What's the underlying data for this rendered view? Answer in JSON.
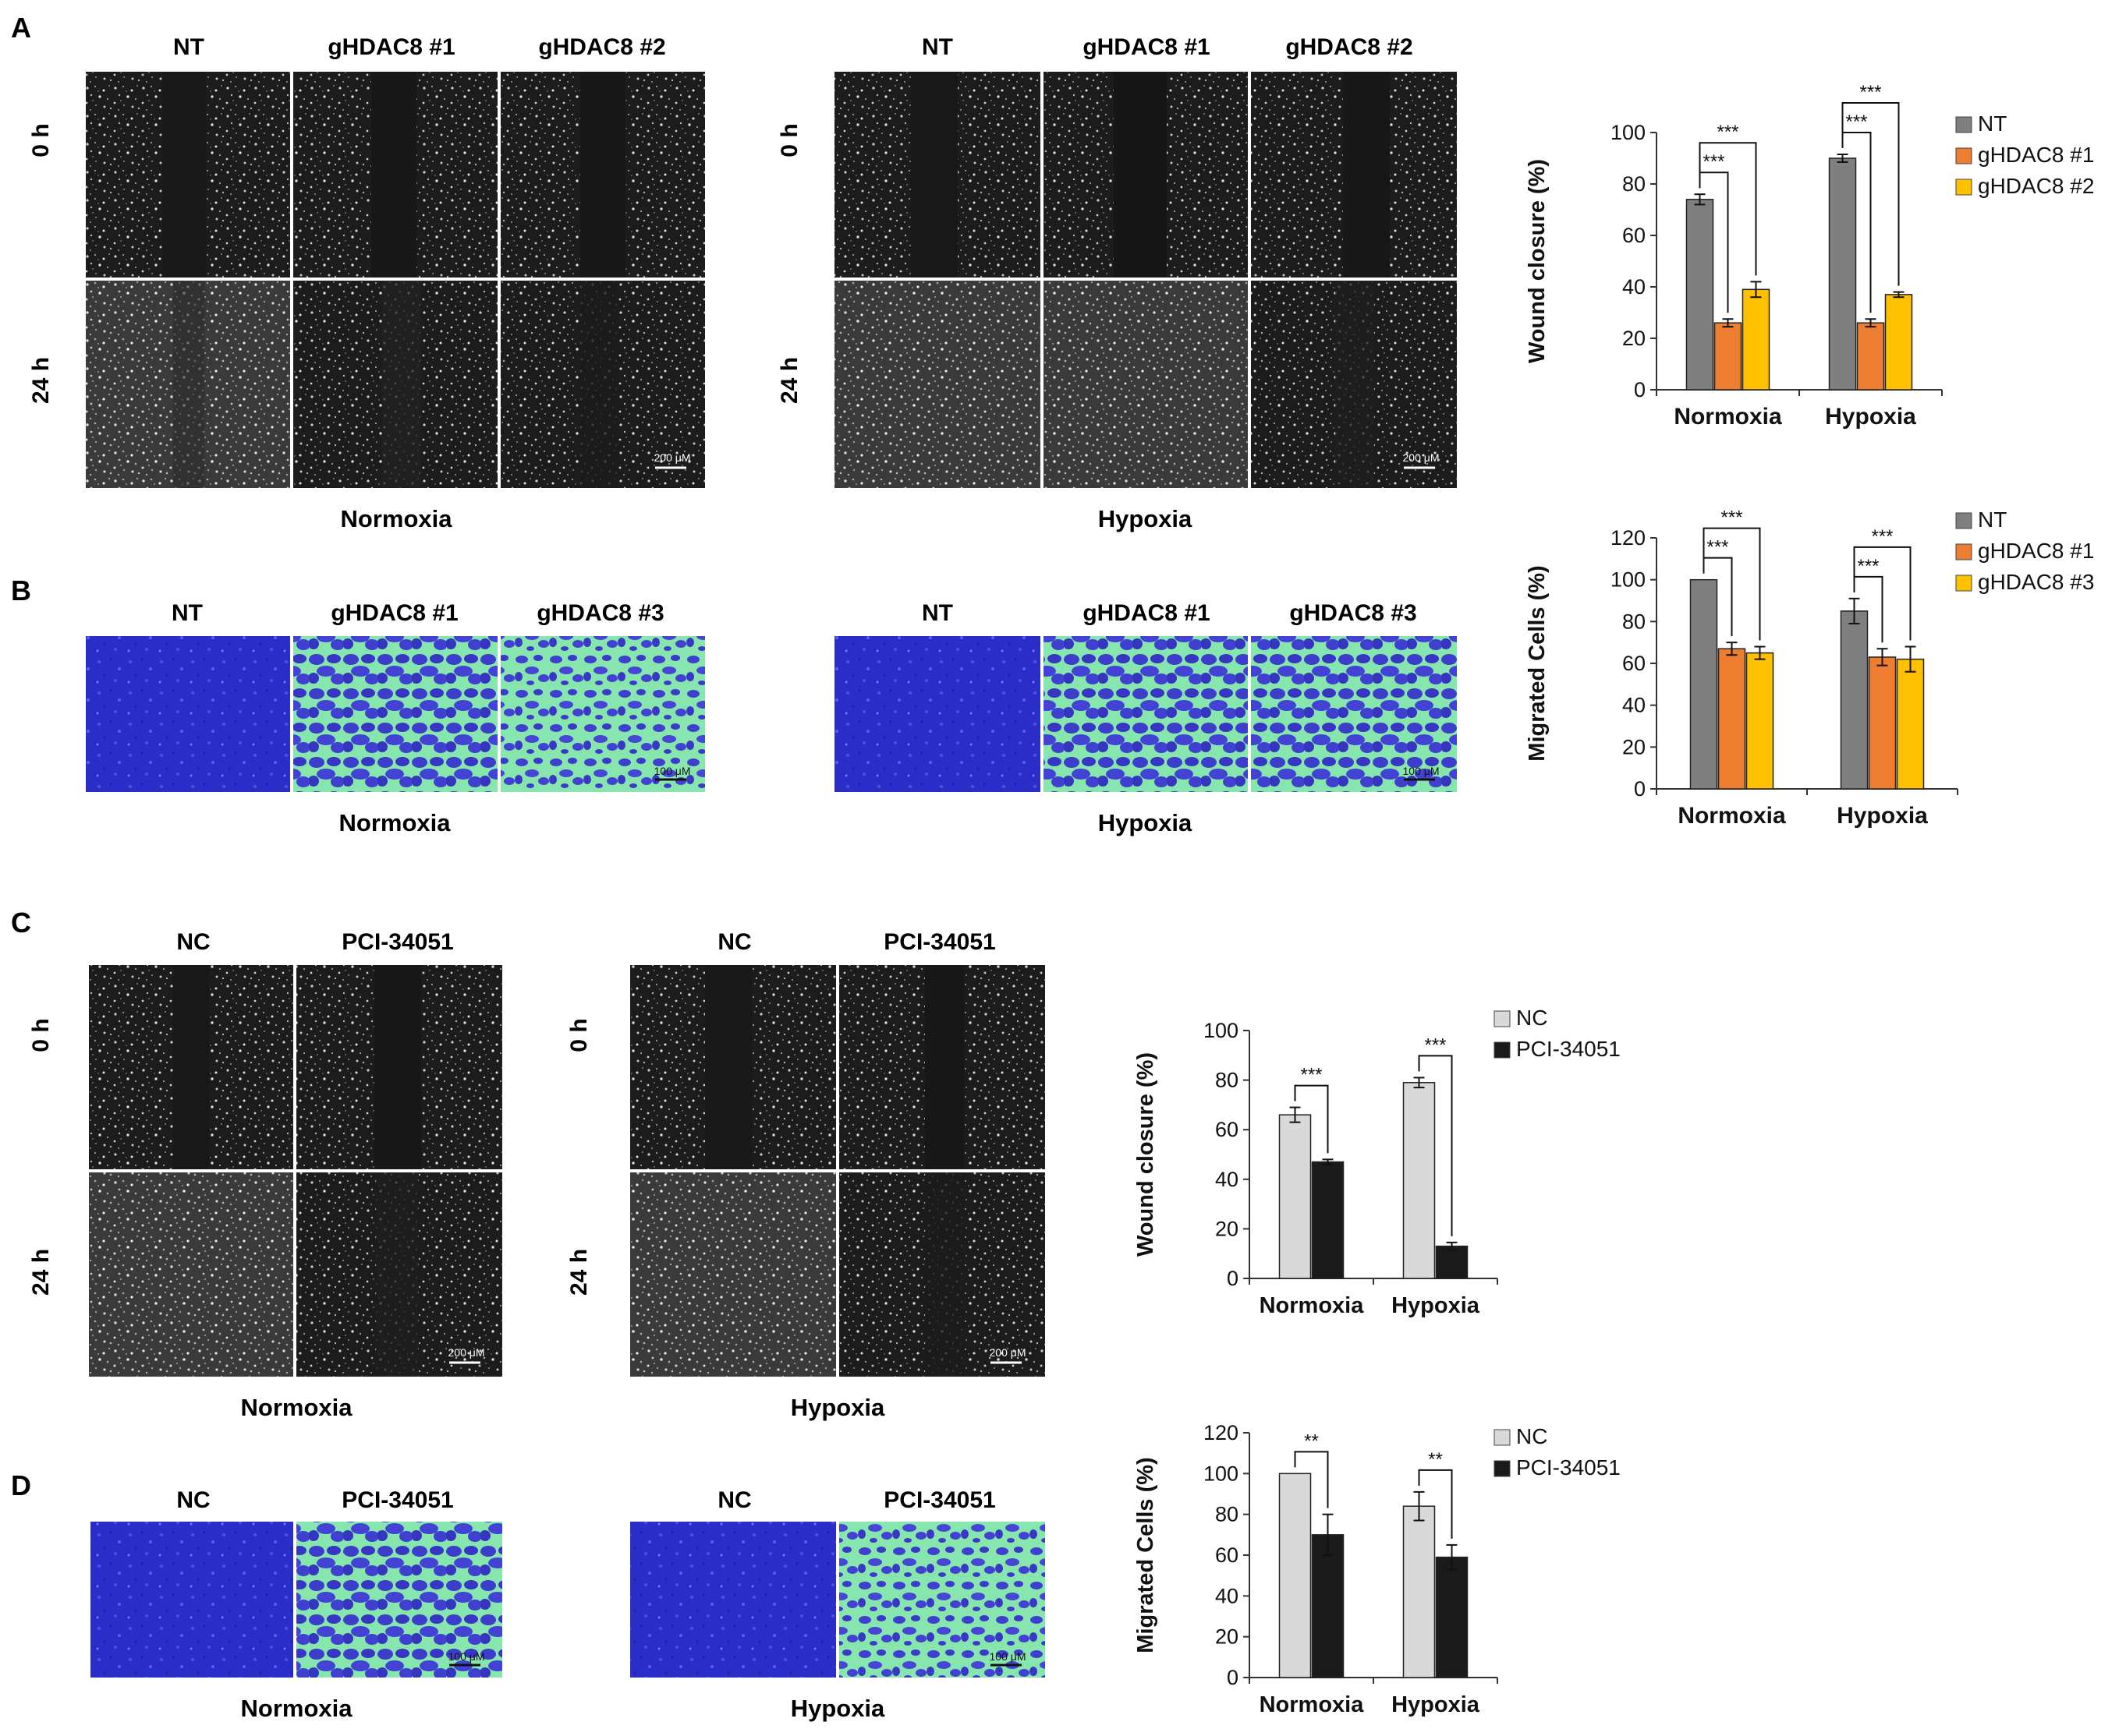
{
  "panels": {
    "A": {
      "letter": "A",
      "normoxia": {
        "cols": [
          "NT",
          "gHDAC8 #1",
          "gHDAC8 #2"
        ],
        "rows": [
          "0 h",
          "24 h"
        ],
        "caption": "Normoxia",
        "scale": "200 μM"
      },
      "hypoxia": {
        "cols": [
          "NT",
          "gHDAC8 #1",
          "gHDAC8 #2"
        ],
        "rows": [
          "0 h",
          "24 h"
        ],
        "caption": "Hypoxia",
        "scale": "200 μM"
      }
    },
    "B": {
      "letter": "B",
      "normoxia": {
        "cols": [
          "NT",
          "gHDAC8 #1",
          "gHDAC8 #3"
        ],
        "caption": "Normoxia",
        "scale": "100 μM"
      },
      "hypoxia": {
        "cols": [
          "NT",
          "gHDAC8 #1",
          "gHDAC8 #3"
        ],
        "caption": "Hypoxia",
        "scale": "100 μM"
      }
    },
    "C": {
      "letter": "C",
      "normoxia": {
        "cols": [
          "NC",
          "PCI-34051"
        ],
        "rows": [
          "0 h",
          "24 h"
        ],
        "caption": "Normoxia",
        "scale": "200 μM"
      },
      "hypoxia": {
        "cols": [
          "NC",
          "PCI-34051"
        ],
        "rows": [
          "0 h",
          "24 h"
        ],
        "caption": "Hypoxia",
        "scale": "200 μM"
      }
    },
    "D": {
      "letter": "D",
      "normoxia": {
        "cols": [
          "NC",
          "PCI-34051"
        ],
        "caption": "Normoxia",
        "scale": "100 μM"
      },
      "hypoxia": {
        "cols": [
          "NC",
          "PCI-34051"
        ],
        "caption": "Hypoxia",
        "scale": "100 μM"
      }
    }
  },
  "colors": {
    "nt": "#7f7f7f",
    "g1": "#ed7d31",
    "g2": "#ffc000",
    "nc": "#d9d9d9",
    "pci": "#1a1a1a",
    "wound_bg": "#202020",
    "transwell_bg": "#2b2fc6",
    "transwell_gap": "#7fe3a8"
  },
  "chart_data": [
    {
      "id": "A",
      "type": "bar",
      "categories": [
        "Normoxia",
        "Hypoxia"
      ],
      "series": [
        {
          "name": "NT",
          "values": [
            74,
            90
          ],
          "errors": [
            2,
            1.5
          ]
        },
        {
          "name": "gHDAC8 #1",
          "values": [
            26,
            26
          ],
          "errors": [
            1.5,
            1.5
          ]
        },
        {
          "name": "gHDAC8 #2",
          "values": [
            39,
            37
          ],
          "errors": [
            3,
            1
          ]
        }
      ],
      "ylabel": "Wound closure (%)",
      "ylim": [
        0,
        100
      ],
      "yticks": [
        0,
        20,
        40,
        60,
        80,
        100
      ],
      "significance": [
        {
          "category": 0,
          "from": 0,
          "to": 1,
          "label": "***"
        },
        {
          "category": 0,
          "from": 0,
          "to": 2,
          "label": "***"
        },
        {
          "category": 1,
          "from": 0,
          "to": 1,
          "label": "***"
        },
        {
          "category": 1,
          "from": 0,
          "to": 2,
          "label": "***"
        }
      ],
      "legend": "right"
    },
    {
      "id": "B",
      "type": "bar",
      "categories": [
        "Normoxia",
        "Hypoxia"
      ],
      "series": [
        {
          "name": "NT",
          "values": [
            100,
            85
          ],
          "errors": [
            0,
            6
          ]
        },
        {
          "name": "gHDAC8 #1",
          "values": [
            67,
            63
          ],
          "errors": [
            3,
            4
          ]
        },
        {
          "name": "gHDAC8 #3",
          "values": [
            65,
            62
          ],
          "errors": [
            3,
            6
          ]
        }
      ],
      "ylabel": "Migrated Cells (%)",
      "ylim": [
        0,
        120
      ],
      "yticks": [
        0,
        20,
        40,
        60,
        80,
        100,
        120
      ],
      "significance": [
        {
          "category": 0,
          "from": 0,
          "to": 1,
          "label": "***"
        },
        {
          "category": 0,
          "from": 0,
          "to": 2,
          "label": "***"
        },
        {
          "category": 1,
          "from": 0,
          "to": 1,
          "label": "***"
        },
        {
          "category": 1,
          "from": 0,
          "to": 2,
          "label": "***"
        }
      ],
      "legend": "right"
    },
    {
      "id": "C",
      "type": "bar",
      "categories": [
        "Normoxia",
        "Hypoxia"
      ],
      "series": [
        {
          "name": "NC",
          "values": [
            66,
            79
          ],
          "errors": [
            3,
            2
          ]
        },
        {
          "name": "PCI-34051",
          "values": [
            47,
            13
          ],
          "errors": [
            1,
            1.5
          ]
        }
      ],
      "ylabel": "Wound closure (%)",
      "ylim": [
        0,
        100
      ],
      "yticks": [
        0,
        20,
        40,
        60,
        80,
        100
      ],
      "significance": [
        {
          "category": 0,
          "from": 0,
          "to": 1,
          "label": "***"
        },
        {
          "category": 1,
          "from": 0,
          "to": 1,
          "label": "***"
        }
      ],
      "legend": "right"
    },
    {
      "id": "D",
      "type": "bar",
      "categories": [
        "Normoxia",
        "Hypoxia"
      ],
      "series": [
        {
          "name": "NC",
          "values": [
            100,
            84
          ],
          "errors": [
            0,
            7
          ]
        },
        {
          "name": "PCI-34051",
          "values": [
            70,
            59
          ],
          "errors": [
            10,
            6
          ]
        }
      ],
      "ylabel": "Migrated Cells (%)",
      "ylim": [
        0,
        120
      ],
      "yticks": [
        0,
        20,
        40,
        60,
        80,
        100,
        120
      ],
      "significance": [
        {
          "category": 0,
          "from": 0,
          "to": 1,
          "label": "**"
        },
        {
          "category": 1,
          "from": 0,
          "to": 1,
          "label": "**"
        }
      ],
      "legend": "right"
    }
  ]
}
